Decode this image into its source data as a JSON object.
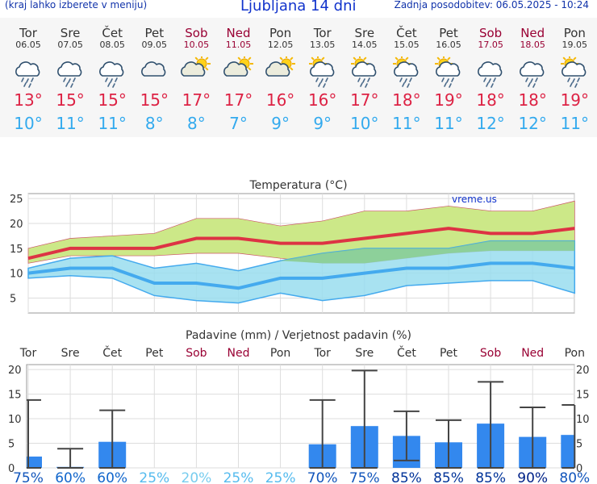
{
  "header": {
    "hint": "(kraj lahko izberete v meniju)",
    "title": "Ljubljana 14 dni",
    "updated": "Zadnja posodobitev: 06.05.2025 - 10:24"
  },
  "colors": {
    "weekday": "#333333",
    "weekend": "#990033",
    "tmax": "#dd2244",
    "tmin": "#33aaee",
    "bar": "#3388ee",
    "errbar": "#444444",
    "mean_max": "#dd3344",
    "mean_min": "#44aaee",
    "band_max": "#cce888",
    "band_min": "#99ddee",
    "overlap": "#88cc88"
  },
  "days": [
    {
      "name": "Tor",
      "date": "06.05",
      "weekend": false,
      "icon": "cloud-rain-icon",
      "tmax": "13°",
      "tmin": "10°"
    },
    {
      "name": "Sre",
      "date": "07.05",
      "weekend": false,
      "icon": "cloud-rain-icon",
      "tmax": "15°",
      "tmin": "11°"
    },
    {
      "name": "Čet",
      "date": "08.05",
      "weekend": false,
      "icon": "cloud-rain-icon",
      "tmax": "15°",
      "tmin": "11°"
    },
    {
      "name": "Pet",
      "date": "09.05",
      "weekend": false,
      "icon": "cloud-icon",
      "tmax": "15°",
      "tmin": "8°"
    },
    {
      "name": "Sob",
      "date": "10.05",
      "weekend": true,
      "icon": "sun-cloud-icon",
      "tmax": "17°",
      "tmin": "8°"
    },
    {
      "name": "Ned",
      "date": "11.05",
      "weekend": true,
      "icon": "sun-cloud-icon",
      "tmax": "17°",
      "tmin": "7°"
    },
    {
      "name": "Pon",
      "date": "12.05",
      "weekend": false,
      "icon": "sun-cloud-icon",
      "tmax": "16°",
      "tmin": "9°"
    },
    {
      "name": "Tor",
      "date": "13.05",
      "weekend": false,
      "icon": "sun-cloud-rain-icon",
      "tmax": "16°",
      "tmin": "9°"
    },
    {
      "name": "Sre",
      "date": "14.05",
      "weekend": false,
      "icon": "sun-cloud-rain-icon",
      "tmax": "17°",
      "tmin": "10°"
    },
    {
      "name": "Čet",
      "date": "15.05",
      "weekend": false,
      "icon": "sun-cloud-rain-icon",
      "tmax": "18°",
      "tmin": "11°"
    },
    {
      "name": "Pet",
      "date": "16.05",
      "weekend": false,
      "icon": "sun-cloud-rain-icon",
      "tmax": "19°",
      "tmin": "11°"
    },
    {
      "name": "Sob",
      "date": "17.05",
      "weekend": true,
      "icon": "cloud-rain-icon",
      "tmax": "18°",
      "tmin": "12°"
    },
    {
      "name": "Ned",
      "date": "18.05",
      "weekend": true,
      "icon": "cloud-rain-icon",
      "tmax": "18°",
      "tmin": "12°"
    },
    {
      "name": "Pon",
      "date": "19.05",
      "weekend": false,
      "icon": "sun-cloud-rain-icon",
      "tmax": "19°",
      "tmin": "11°"
    }
  ],
  "chart_data": [
    {
      "type": "line",
      "title": "Temperatura (°C)",
      "watermark": "vreme.us",
      "ylim": [
        2,
        26
      ],
      "yticks": [
        5,
        10,
        15,
        20,
        25
      ],
      "grid": true,
      "series": [
        {
          "values": [
            13,
            15,
            15,
            15,
            17,
            17,
            16,
            16,
            17,
            18,
            19,
            18,
            18,
            19
          ]
        },
        {
          "values": [
            10,
            11,
            11,
            8,
            8,
            7,
            9,
            9,
            10,
            11,
            11,
            12,
            12,
            11
          ]
        }
      ],
      "band_max": {
        "upper": [
          15,
          17,
          17.5,
          18,
          21,
          21,
          19.5,
          20.5,
          22.5,
          22.5,
          23.5,
          22.5,
          22.5,
          24.5
        ],
        "lower": [
          12,
          13.5,
          13.5,
          13.5,
          14,
          14,
          13,
          12,
          12,
          13,
          14,
          14.5,
          14.5,
          14.5
        ]
      },
      "band_min": {
        "upper": [
          11,
          13,
          13.5,
          11,
          12,
          10.5,
          12.5,
          14,
          15,
          15,
          15,
          16.5,
          16.5,
          16.5
        ],
        "lower": [
          9,
          9.5,
          9,
          5.5,
          4.5,
          4,
          6,
          4.5,
          5.5,
          7.5,
          8,
          8.5,
          8.5,
          6
        ]
      }
    },
    {
      "type": "bar",
      "title": "Padavine (mm) / Verjetnost padavin (%)",
      "ylim": [
        0,
        21
      ],
      "yticks": [
        0,
        5,
        10,
        15,
        20
      ],
      "values": [
        2.3,
        0.2,
        5.3,
        0,
        0,
        0,
        0,
        4.8,
        8.5,
        6.5,
        5.2,
        9,
        6.3,
        6.7
      ],
      "err_low": [
        0,
        0,
        0,
        0,
        0,
        0,
        0,
        0,
        0,
        1.5,
        0,
        0,
        0,
        0
      ],
      "err_high": [
        13.8,
        3.9,
        11.7,
        0,
        0,
        0,
        0,
        13.8,
        19.8,
        11.5,
        9.7,
        17.5,
        12.3,
        12.8
      ],
      "probability": [
        "75%",
        "60%",
        "60%",
        "25%",
        "20%",
        "25%",
        "25%",
        "70%",
        "75%",
        "85%",
        "85%",
        "85%",
        "90%",
        "80%"
      ],
      "prob_color": [
        "#1155bb",
        "#1166cc",
        "#1166cc",
        "#55bbee",
        "#77ccee",
        "#55bbee",
        "#55bbee",
        "#1155bb",
        "#1155bb",
        "#003399",
        "#003399",
        "#003399",
        "#002288",
        "#1155bb"
      ]
    }
  ]
}
